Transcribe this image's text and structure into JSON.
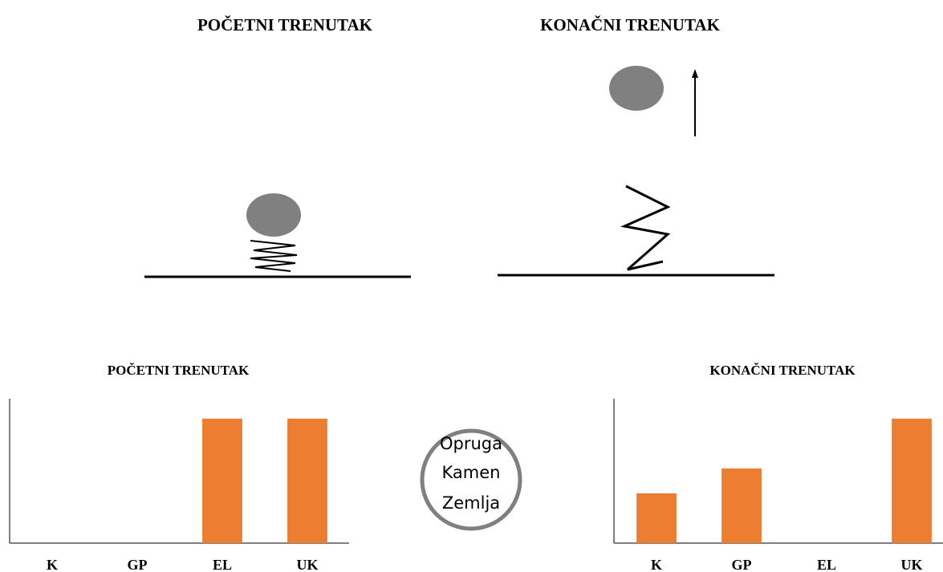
{
  "scene": {
    "left_title": "POČETNI TRENUTAK",
    "right_title": "KONAČNI TRENUTAK"
  },
  "system": [
    "Opruga",
    "Kamen",
    "Zemlja"
  ],
  "chart_data": [
    {
      "type": "bar",
      "title": "POČETNI TRENUTAK",
      "categories": [
        "K",
        "GP",
        "EL",
        "UK"
      ],
      "values": [
        0,
        0,
        5,
        5
      ],
      "color": "#ed7d31",
      "ylim": [
        0,
        5.8
      ]
    },
    {
      "type": "bar",
      "title": "KONAČNI TRENUTAK",
      "categories": [
        "K",
        "GP",
        "EL",
        "UK"
      ],
      "values": [
        2,
        3,
        0,
        5
      ],
      "color": "#ed7d31",
      "ylim": [
        0,
        5.8
      ]
    }
  ]
}
